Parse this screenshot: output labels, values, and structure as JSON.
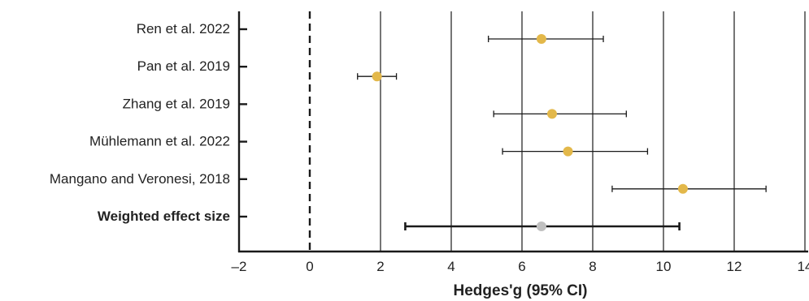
{
  "chart_data": {
    "type": "forest",
    "title": "",
    "xlabel": "Hedges'g (95% CI)",
    "ylabel": "",
    "xlim": [
      -2,
      14
    ],
    "xticks": [
      {
        "value": -2,
        "label": "–2"
      },
      {
        "value": 0,
        "label": "0"
      },
      {
        "value": 2,
        "label": "2"
      },
      {
        "value": 4,
        "label": "4"
      },
      {
        "value": 6,
        "label": "6"
      },
      {
        "value": 8,
        "label": "8"
      },
      {
        "value": 10,
        "label": "10"
      },
      {
        "value": 12,
        "label": "12"
      },
      {
        "value": 14,
        "label": "14"
      }
    ],
    "reference_line": 0,
    "grid": true,
    "rows": [
      {
        "label": "Ren et al. 2022",
        "estimate": 6.55,
        "ci_low": 5.05,
        "ci_high": 8.3,
        "bold": false,
        "color": "#e3b84a"
      },
      {
        "label": "Pan et al. 2019",
        "estimate": 1.9,
        "ci_low": 1.35,
        "ci_high": 2.45,
        "bold": false,
        "color": "#e3b84a"
      },
      {
        "label": "Zhang et al. 2019",
        "estimate": 6.85,
        "ci_low": 5.2,
        "ci_high": 8.95,
        "bold": false,
        "color": "#e3b84a"
      },
      {
        "label": "Mühlemann et al. 2022",
        "estimate": 7.3,
        "ci_low": 5.45,
        "ci_high": 9.55,
        "bold": false,
        "color": "#e3b84a"
      },
      {
        "label": "Mangano and Veronesi, 2018",
        "estimate": 10.55,
        "ci_low": 8.55,
        "ci_high": 12.9,
        "bold": false,
        "color": "#e3b84a"
      },
      {
        "label": "Weighted effect size",
        "estimate": 6.55,
        "ci_low": 2.7,
        "ci_high": 10.45,
        "bold": true,
        "color": "#c0c0c0"
      }
    ]
  }
}
